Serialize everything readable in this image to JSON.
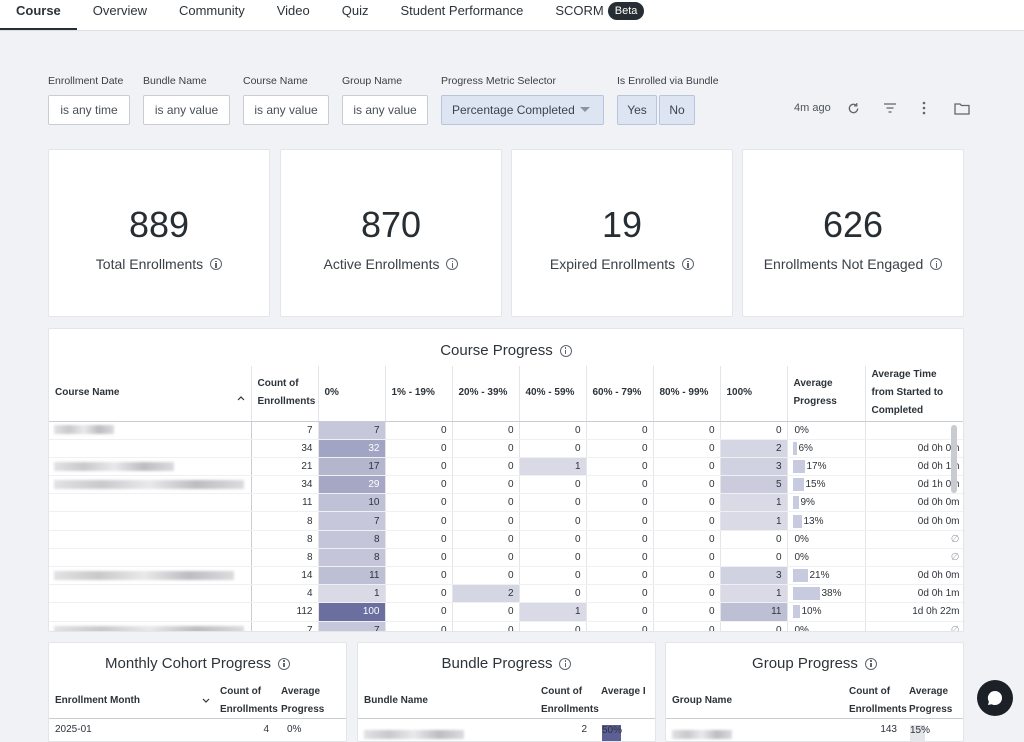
{
  "tabs": [
    {
      "label": "Course",
      "active": true
    },
    {
      "label": "Overview"
    },
    {
      "label": "Community"
    },
    {
      "label": "Video"
    },
    {
      "label": "Quiz"
    },
    {
      "label": "Student Performance"
    },
    {
      "label": "SCORM",
      "badge": "Beta"
    }
  ],
  "filters": {
    "enrollment_date": {
      "label": "Enrollment Date",
      "value": "is any time"
    },
    "bundle_name": {
      "label": "Bundle Name",
      "value": "is any value"
    },
    "course_name": {
      "label": "Course Name",
      "value": "is any value"
    },
    "group_name": {
      "label": "Group Name",
      "value": "is any value"
    },
    "progress_metric": {
      "label": "Progress Metric Selector",
      "value": "Percentage Completed"
    },
    "enrolled_via_bundle": {
      "label": "Is Enrolled via Bundle",
      "yes": "Yes",
      "no": "No"
    }
  },
  "toolbar": {
    "updated": "4m ago",
    "icons": [
      "refresh-icon",
      "filter-icon",
      "more-vert-icon",
      "folder-icon"
    ]
  },
  "kpis": [
    {
      "value": "889",
      "label": "Total Enrollments"
    },
    {
      "value": "870",
      "label": "Active Enrollments"
    },
    {
      "value": "19",
      "label": "Expired Enrollments"
    },
    {
      "value": "626",
      "label": "Enrollments Not Engaged"
    }
  ],
  "course_progress": {
    "title": "Course Progress",
    "columns": [
      "Course Name",
      "Count of Enrollments",
      "0%",
      "1% - 19%",
      "20% - 39%",
      "40% - 59%",
      "60% - 79%",
      "80% - 99%",
      "100%",
      "Average Progress",
      "Average Time from Started to Completed"
    ],
    "heat_color": "#5b5f95",
    "rows": [
      {
        "count": "7",
        "b": [
          "7",
          "0",
          "0",
          "0",
          "0",
          "0",
          "0"
        ],
        "avg": "0%",
        "avg_frac": 0,
        "time": ""
      },
      {
        "count": "34",
        "b": [
          "32",
          "0",
          "0",
          "0",
          "0",
          "0",
          "2"
        ],
        "avg": "6%",
        "avg_frac": 0.06,
        "time": "0d 0h 0m"
      },
      {
        "count": "21",
        "b": [
          "17",
          "0",
          "0",
          "1",
          "0",
          "0",
          "3"
        ],
        "avg": "17%",
        "avg_frac": 0.17,
        "time": "0d 0h 1m"
      },
      {
        "count": "34",
        "b": [
          "29",
          "0",
          "0",
          "0",
          "0",
          "0",
          "5"
        ],
        "avg": "15%",
        "avg_frac": 0.15,
        "time": "0d 1h 0m"
      },
      {
        "count": "11",
        "b": [
          "10",
          "0",
          "0",
          "0",
          "0",
          "0",
          "1"
        ],
        "avg": "9%",
        "avg_frac": 0.09,
        "time": "0d 0h 0m"
      },
      {
        "count": "8",
        "b": [
          "7",
          "0",
          "0",
          "0",
          "0",
          "0",
          "1"
        ],
        "avg": "13%",
        "avg_frac": 0.13,
        "time": "0d 0h 0m"
      },
      {
        "count": "8",
        "b": [
          "8",
          "0",
          "0",
          "0",
          "0",
          "0",
          "0"
        ],
        "avg": "0%",
        "avg_frac": 0,
        "time": "∅"
      },
      {
        "count": "8",
        "b": [
          "8",
          "0",
          "0",
          "0",
          "0",
          "0",
          "0"
        ],
        "avg": "0%",
        "avg_frac": 0,
        "time": "∅"
      },
      {
        "count": "14",
        "b": [
          "11",
          "0",
          "0",
          "0",
          "0",
          "0",
          "3"
        ],
        "avg": "21%",
        "avg_frac": 0.21,
        "time": "0d 0h 0m"
      },
      {
        "count": "4",
        "b": [
          "1",
          "0",
          "2",
          "0",
          "0",
          "0",
          "1"
        ],
        "avg": "38%",
        "avg_frac": 0.38,
        "time": "0d 0h 1m"
      },
      {
        "count": "112",
        "b": [
          "100",
          "0",
          "0",
          "1",
          "0",
          "0",
          "11"
        ],
        "avg": "10%",
        "avg_frac": 0.1,
        "time": "1d 0h 22m"
      },
      {
        "count": "7",
        "b": [
          "7",
          "0",
          "0",
          "0",
          "0",
          "0",
          "0"
        ],
        "avg": "0%",
        "avg_frac": 0,
        "time": "∅"
      }
    ]
  },
  "monthly_cohort": {
    "title": "Monthly Cohort Progress",
    "columns": [
      "Enrollment Month",
      "Count of Enrollments",
      "Average Progress"
    ],
    "rows": [
      {
        "month": "2025-01",
        "count": "4",
        "avg": "0%"
      }
    ]
  },
  "bundle_progress": {
    "title": "Bundle Progress",
    "columns": [
      "Bundle Name",
      "Count of Enrollments",
      "Average Progres.."
    ],
    "rows": [
      {
        "count": "2",
        "avg": "50%",
        "avg_frac": 0.5
      }
    ]
  },
  "group_progress": {
    "title": "Group Progress",
    "columns": [
      "Group Name",
      "Count of Enrollments",
      "Average Progress"
    ],
    "rows": [
      {
        "count": "143",
        "avg": "15%",
        "avg_frac": 0.15
      }
    ]
  }
}
